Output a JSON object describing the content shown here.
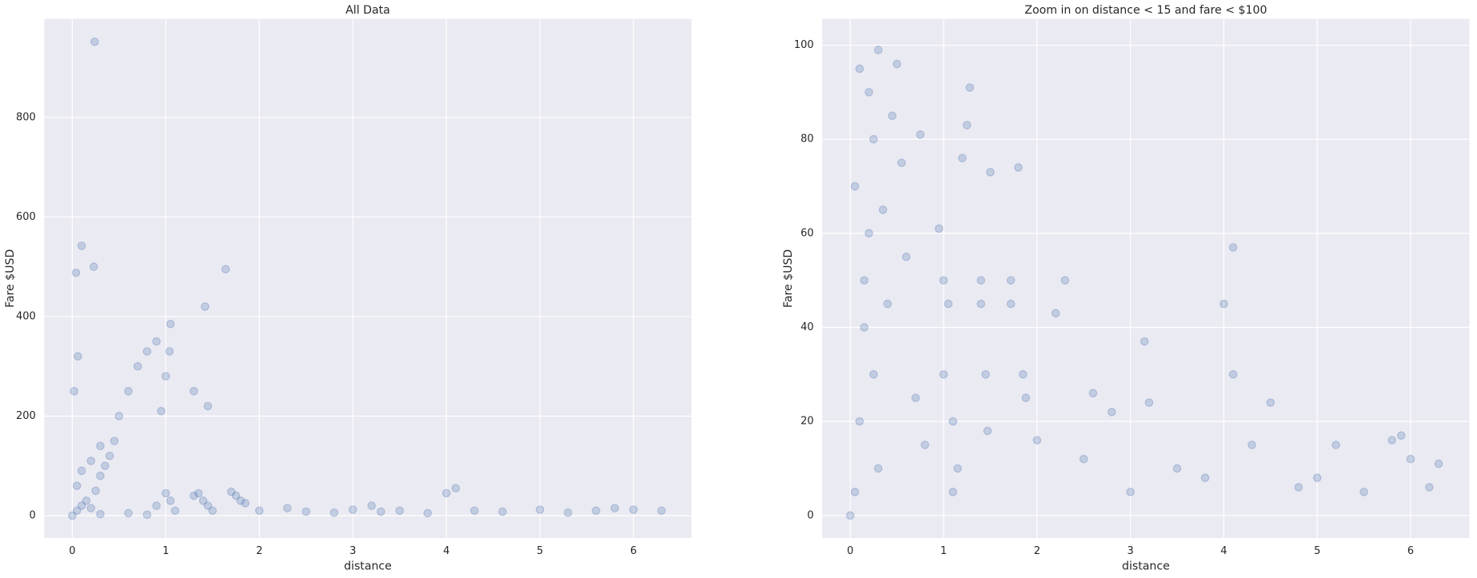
{
  "chart_data": [
    {
      "type": "scatter",
      "title": "All Data",
      "x_label": "distance",
      "y_label": "Fare $USD",
      "series": [
        {
          "color": "#4c72b0",
          "x": [
            0.05,
            0.1,
            0.15,
            0.2,
            0.25,
            0.3,
            0.35,
            0.4,
            0.45,
            0.3,
            0.2,
            0.1,
            0.05,
            0.02,
            0.06,
            0.04,
            0.1,
            0.23,
            0.24,
            0.5,
            0.6,
            0.7,
            0.8,
            0.9,
            1.0,
            1.05,
            1.04,
            0.95,
            1.0,
            1.05,
            1.1,
            0.9,
            1.3,
            1.35,
            1.4,
            1.45,
            1.5,
            1.42,
            1.45,
            1.3,
            1.64,
            1.7,
            1.75,
            1.8,
            1.85,
            2.0,
            2.3,
            2.5,
            2.8,
            3.0,
            3.2,
            3.3,
            3.5,
            3.8,
            4.0,
            4.1,
            4.3,
            4.6,
            5.0,
            5.3,
            5.6,
            5.8,
            6.0,
            6.3,
            0.0,
            0.3,
            0.6,
            0.8
          ],
          "values": [
            10,
            20,
            30,
            15,
            50,
            80,
            100,
            120,
            150,
            140,
            110,
            90,
            60,
            250,
            320,
            488,
            542,
            500,
            952,
            200,
            250,
            300,
            330,
            350,
            280,
            385,
            330,
            210,
            45,
            30,
            10,
            20,
            40,
            45,
            30,
            20,
            10,
            420,
            220,
            250,
            495,
            48,
            40,
            30,
            25,
            10,
            15,
            8,
            6,
            12,
            20,
            8,
            10,
            5,
            45,
            55,
            10,
            8,
            12,
            6,
            10,
            15,
            12,
            10,
            0,
            3,
            5,
            2
          ]
        }
      ],
      "xlim": [
        -0.3,
        6.62
      ],
      "ylim": [
        -45,
        998
      ],
      "xticks": [
        0,
        1,
        2,
        3,
        4,
        5,
        6
      ],
      "yticks": [
        0,
        200,
        400,
        600,
        800
      ],
      "grid": true
    },
    {
      "type": "scatter",
      "title": "Zoom in on distance < 15  and fare < $100",
      "x_label": "distance",
      "y_label": "Fare $USD",
      "series": [
        {
          "color": "#4c72b0",
          "x": [
            0.0,
            0.05,
            0.1,
            0.15,
            0.2,
            0.25,
            0.3,
            0.1,
            0.2,
            0.05,
            0.15,
            0.25,
            0.3,
            0.35,
            0.4,
            0.45,
            0.5,
            0.55,
            0.6,
            0.7,
            0.75,
            0.8,
            0.95,
            1.0,
            1.05,
            1.0,
            1.1,
            1.15,
            1.1,
            1.2,
            1.28,
            1.25,
            1.4,
            1.4,
            1.45,
            1.47,
            1.5,
            1.72,
            1.72,
            1.8,
            1.85,
            1.88,
            2.0,
            2.2,
            2.3,
            2.5,
            2.6,
            2.8,
            3.0,
            3.15,
            3.2,
            3.5,
            3.8,
            4.0,
            4.1,
            4.1,
            4.3,
            4.5,
            4.8,
            5.0,
            5.2,
            5.5,
            5.8,
            5.9,
            6.0,
            6.3,
            6.2
          ],
          "values": [
            0,
            5,
            20,
            40,
            60,
            80,
            99,
            95,
            90,
            70,
            50,
            30,
            10,
            65,
            45,
            85,
            96,
            75,
            55,
            25,
            81,
            15,
            61,
            50,
            45,
            30,
            20,
            10,
            5,
            76,
            91,
            83,
            50,
            45,
            30,
            18,
            73,
            50,
            45,
            74,
            30,
            25,
            16,
            43,
            50,
            12,
            26,
            22,
            5,
            37,
            24,
            10,
            8,
            45,
            57,
            30,
            15,
            24,
            6,
            8,
            15,
            5,
            16,
            17,
            12,
            11,
            6
          ]
        }
      ],
      "xlim": [
        -0.3,
        6.63
      ],
      "ylim": [
        -4.8,
        105.6
      ],
      "xticks": [
        0,
        1,
        2,
        3,
        4,
        5,
        6
      ],
      "yticks": [
        0,
        20,
        40,
        60,
        80,
        100
      ],
      "grid": true
    }
  ]
}
